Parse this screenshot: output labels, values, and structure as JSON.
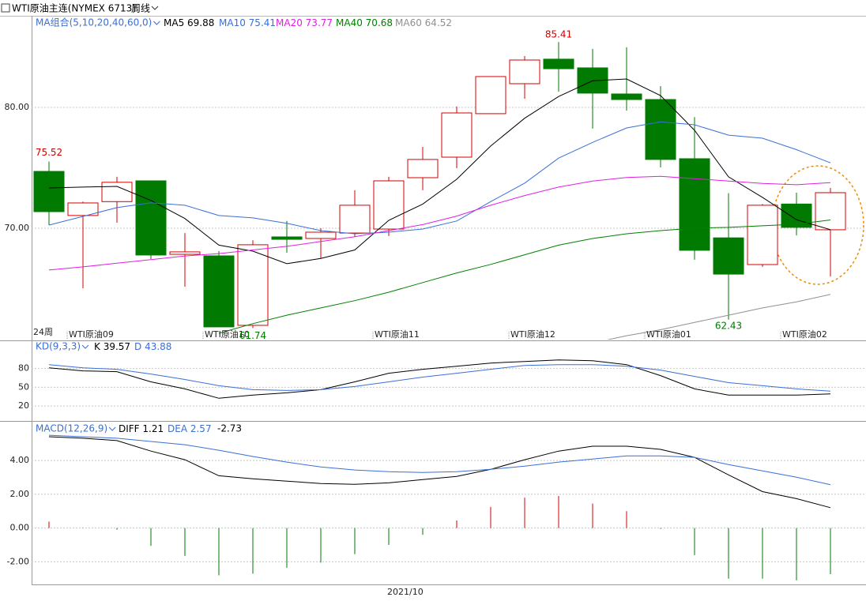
{
  "header": {
    "symbol": "WTI原油主连(NYMEX 6713)",
    "period": "周线"
  },
  "x_axis_label": "2021/10",
  "chart_data": [
    {
      "type": "candlestick",
      "title": "MA组合(5,10,20,40,60,0)",
      "corner_label": "24周",
      "categories": [
        null,
        "WTI原油09",
        null,
        null,
        null,
        "WTI原油10",
        null,
        null,
        null,
        null,
        "WTI原油11",
        null,
        null,
        null,
        "WTI原油12",
        null,
        null,
        null,
        "WTI原油01",
        null,
        null,
        null,
        "WTI原油02",
        null
      ],
      "open": [
        74.7,
        71.05,
        72.2,
        73.92,
        67.84,
        67.71,
        61.96,
        69.28,
        69.15,
        69.6,
        69.93,
        74.18,
        75.88,
        79.48,
        81.96,
        83.99,
        83.27,
        81.11,
        80.65,
        75.75,
        69.2,
        66.99,
        72.0,
        69.87
      ],
      "high": [
        75.52,
        72.2,
        74.25,
        73.92,
        69.6,
        68.1,
        69.0,
        70.6,
        70.0,
        73.14,
        74.25,
        76.73,
        80.07,
        82.55,
        84.25,
        85.41,
        84.84,
        84.97,
        81.76,
        79.2,
        72.9,
        72.0,
        72.94,
        73.33
      ],
      "low": [
        70.26,
        65.03,
        70.46,
        67.45,
        65.16,
        61.83,
        61.74,
        67.97,
        67.5,
        69.28,
        69.35,
        73.14,
        74.97,
        79.48,
        80.72,
        81.3,
        78.24,
        79.74,
        75.03,
        67.39,
        62.43,
        66.8,
        69.41,
        66.0
      ],
      "close": [
        71.37,
        72.09,
        73.8,
        67.78,
        68.04,
        61.83,
        68.63,
        69.08,
        69.67,
        71.9,
        73.92,
        75.69,
        79.54,
        82.55,
        83.92,
        83.2,
        81.18,
        80.65,
        75.69,
        68.17,
        66.2,
        71.9,
        70.07,
        72.94
      ],
      "up_color": "#d40000",
      "down_color": "#007a00",
      "series": [
        {
          "name": "MA5",
          "color": "#000000",
          "values": [
            73.33,
            73.4,
            73.46,
            72.3,
            70.8,
            68.6,
            68.1,
            67.06,
            67.5,
            68.2,
            70.65,
            72.0,
            74.05,
            76.8,
            79.1,
            80.9,
            82.2,
            82.35,
            80.98,
            78.1,
            74.25,
            72.55,
            70.7,
            69.88
          ]
        },
        {
          "name": "MA10",
          "color": "#3a6fd8",
          "values": [
            70.26,
            70.98,
            71.7,
            72.1,
            71.9,
            71.05,
            70.85,
            70.4,
            69.8,
            69.54,
            69.67,
            69.93,
            70.6,
            72.2,
            73.73,
            75.8,
            77.1,
            78.3,
            78.8,
            78.56,
            77.7,
            77.45,
            76.5,
            75.41
          ]
        },
        {
          "name": "MA20",
          "color": "#e020e0",
          "values": [
            66.54,
            66.8,
            67.1,
            67.4,
            67.7,
            67.9,
            68.2,
            68.5,
            68.9,
            69.3,
            69.8,
            70.3,
            71.0,
            71.9,
            72.7,
            73.4,
            73.9,
            74.2,
            74.3,
            74.1,
            73.9,
            73.7,
            73.6,
            73.77
          ]
        },
        {
          "name": "MA40",
          "color": "#008000",
          "values": [
            null,
            null,
            null,
            null,
            null,
            61.3,
            62.1,
            62.8,
            63.4,
            64.0,
            64.7,
            65.5,
            66.3,
            67.0,
            67.8,
            68.6,
            69.15,
            69.54,
            69.8,
            70.0,
            70.07,
            70.2,
            70.33,
            70.68
          ]
        },
        {
          "name": "MA60",
          "color": "#909090",
          "values": [
            null,
            null,
            null,
            null,
            null,
            null,
            null,
            null,
            null,
            null,
            null,
            null,
            null,
            null,
            null,
            null,
            60.5,
            61.1,
            61.6,
            62.2,
            62.8,
            63.4,
            63.9,
            64.52
          ]
        }
      ],
      "ylim": [
        60.78,
        87.58
      ],
      "yticks": [
        {
          "value": 70,
          "label": "70.00"
        },
        {
          "value": 80,
          "label": "80.00"
        }
      ],
      "grid": true
    },
    {
      "type": "line",
      "title": "KD(9,3,3)",
      "series": [
        {
          "name": "K",
          "color": "#000000",
          "values": [
            81.25,
            76.25,
            75,
            58.75,
            47.5,
            32.5,
            37.5,
            41.25,
            46.25,
            58.75,
            72.5,
            78.75,
            83.75,
            88.75,
            91.25,
            93.75,
            92.5,
            86.25,
            68.75,
            47.5,
            37.5,
            37.5,
            37.5,
            39.57
          ]
        },
        {
          "name": "D",
          "color": "#3a6fd8",
          "values": [
            86.25,
            81.25,
            78.75,
            71.25,
            62.5,
            52.5,
            46.25,
            45,
            46.25,
            51.25,
            58.75,
            66.25,
            72.5,
            78.75,
            85,
            86.25,
            86.25,
            83.75,
            77.5,
            67.5,
            57.5,
            52.5,
            47.5,
            43.88
          ]
        }
      ],
      "ylim": [
        -3.75,
        123.75
      ],
      "yticks": [
        20,
        50,
        80
      ],
      "grid": true
    },
    {
      "type": "macd",
      "title": "MACD(12,26,9)",
      "series": [
        {
          "name": "DIFF",
          "color": "#000000",
          "values": [
            5.41,
            5.32,
            5.18,
            4.56,
            4.05,
            3.1,
            2.92,
            2.78,
            2.64,
            2.59,
            2.68,
            2.87,
            3.06,
            3.48,
            4.05,
            4.56,
            4.85,
            4.85,
            4.66,
            4.19,
            3.15,
            2.16,
            1.74,
            1.21
          ]
        },
        {
          "name": "DEA",
          "color": "#3a6fd8",
          "values": [
            5.5,
            5.41,
            5.32,
            5.13,
            4.94,
            4.61,
            4.24,
            3.91,
            3.62,
            3.44,
            3.34,
            3.29,
            3.34,
            3.48,
            3.67,
            3.91,
            4.09,
            4.28,
            4.28,
            4.19,
            3.76,
            3.39,
            3.01,
            2.57
          ]
        }
      ],
      "bars": {
        "up_color": "#d40000",
        "down_color": "#007a00",
        "values": [
          0.38,
          0.02,
          -0.1,
          -1.05,
          -1.65,
          -2.8,
          -2.7,
          -2.35,
          -2.05,
          -1.55,
          -1.0,
          -0.4,
          0.45,
          1.25,
          1.8,
          1.9,
          1.45,
          1.0,
          -0.05,
          -1.6,
          -3.0,
          -3.0,
          -3.1,
          -2.73
        ]
      },
      "ylim": [
        -3.34,
        6.3
      ],
      "yticks": [
        {
          "value": -2,
          "label": "-2.00"
        },
        {
          "value": 0,
          "label": "0.00"
        },
        {
          "value": 2,
          "label": "2.00"
        },
        {
          "value": 4,
          "label": "4.00"
        }
      ],
      "grid": true
    }
  ]
}
